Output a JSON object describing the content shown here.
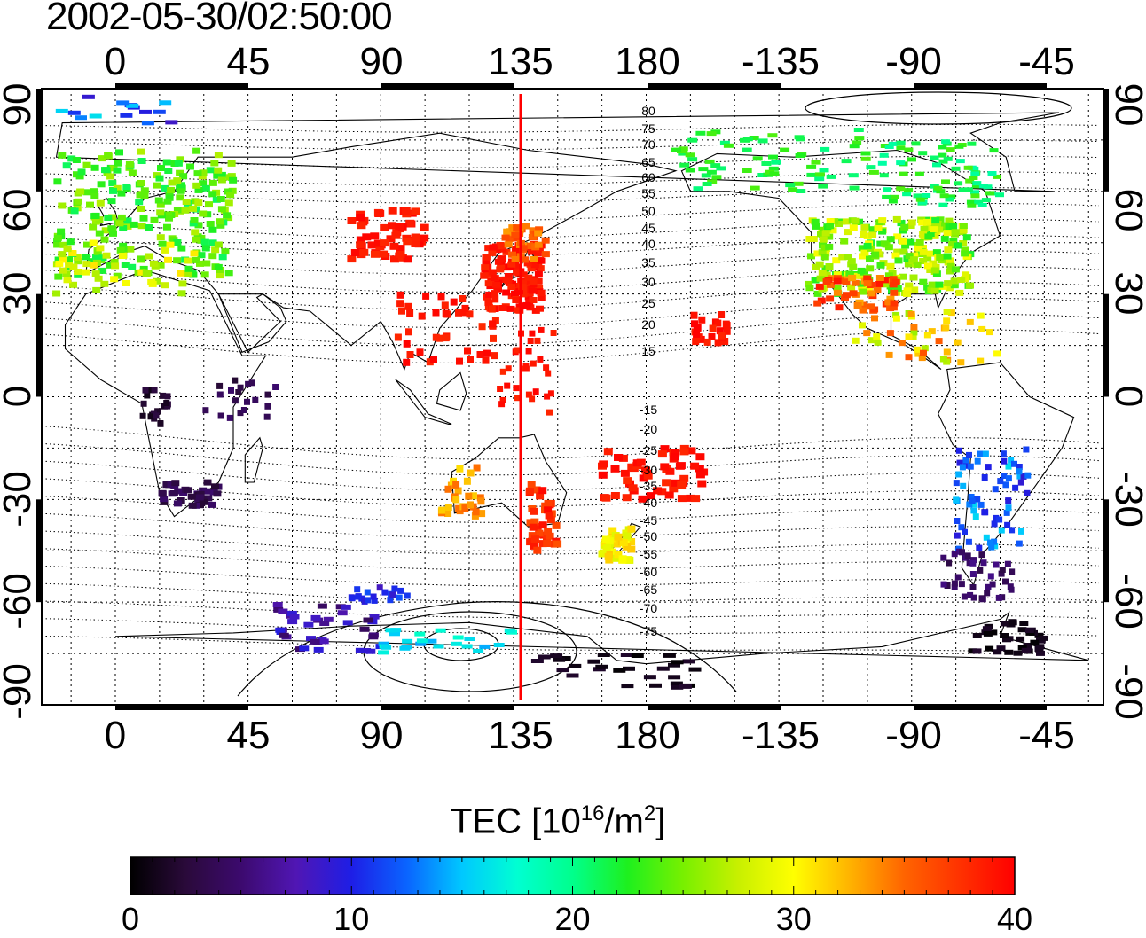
{
  "title": "2002-05-30/02:50:00",
  "map": {
    "lon_tick_labels": [
      "0",
      "45",
      "90",
      "135",
      "180",
      "-135",
      "-90",
      "-45"
    ],
    "lat_tick_labels": [
      "90",
      "60",
      "30",
      "0",
      "-30",
      "-60",
      "-90"
    ],
    "meridian_marker_lon": 135,
    "meridian_marker_color": "#ff0000",
    "magnetic_lat_labels": [
      "80",
      "75",
      "70",
      "65",
      "60",
      "55",
      "50",
      "45",
      "40",
      "35",
      "30",
      "25",
      "20",
      "15",
      "-15",
      "-20",
      "-25",
      "-30",
      "-35",
      "-40",
      "-45",
      "-50",
      "-55",
      "-60",
      "-65",
      "-70",
      "-75"
    ]
  },
  "colorbar": {
    "title_prefix": "TEC  [10",
    "title_exp1": "16",
    "title_mid": "/m",
    "title_exp2": "2",
    "title_suffix": "]",
    "tick_labels": [
      "0",
      "10",
      "20",
      "30",
      "40"
    ],
    "range": [
      0,
      40
    ],
    "colors": [
      "#000000",
      "#2a0a3a",
      "#3c0a6e",
      "#5016b4",
      "#1e1ee6",
      "#0a64ff",
      "#00c8ff",
      "#00ffd2",
      "#00ff8c",
      "#1ef01e",
      "#78f000",
      "#c8f000",
      "#ffff00",
      "#ffb400",
      "#ff6400",
      "#ff3200",
      "#ff0000"
    ]
  }
}
